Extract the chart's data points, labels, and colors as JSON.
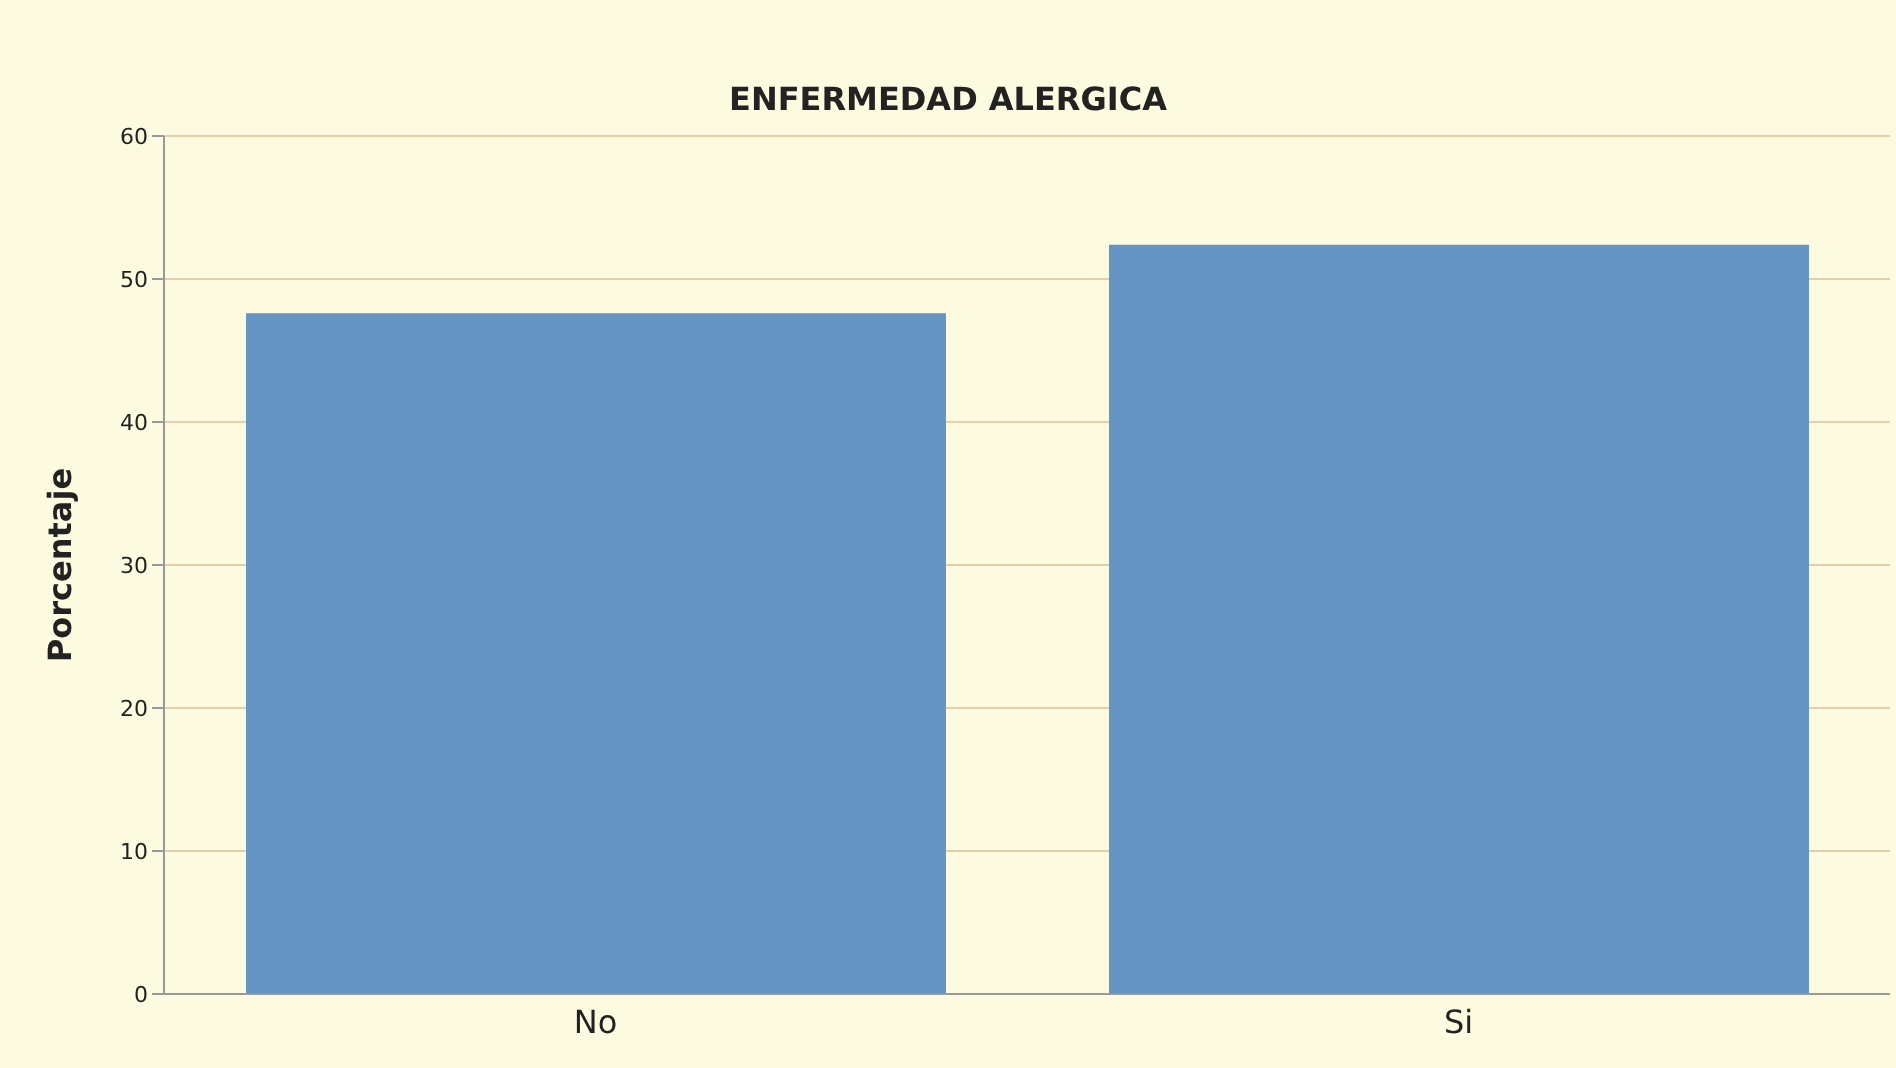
{
  "chart_data": {
    "type": "bar",
    "title": "ENFERMEDAD ALERGICA",
    "ylabel": "Porcentaje",
    "categories": [
      "No",
      "Si"
    ],
    "values": [
      47.6,
      52.4
    ],
    "color": "#6495c4",
    "ylim": [
      0,
      60
    ],
    "yticks": [
      0,
      10,
      20,
      30,
      40,
      50,
      60
    ],
    "grid": "y"
  }
}
